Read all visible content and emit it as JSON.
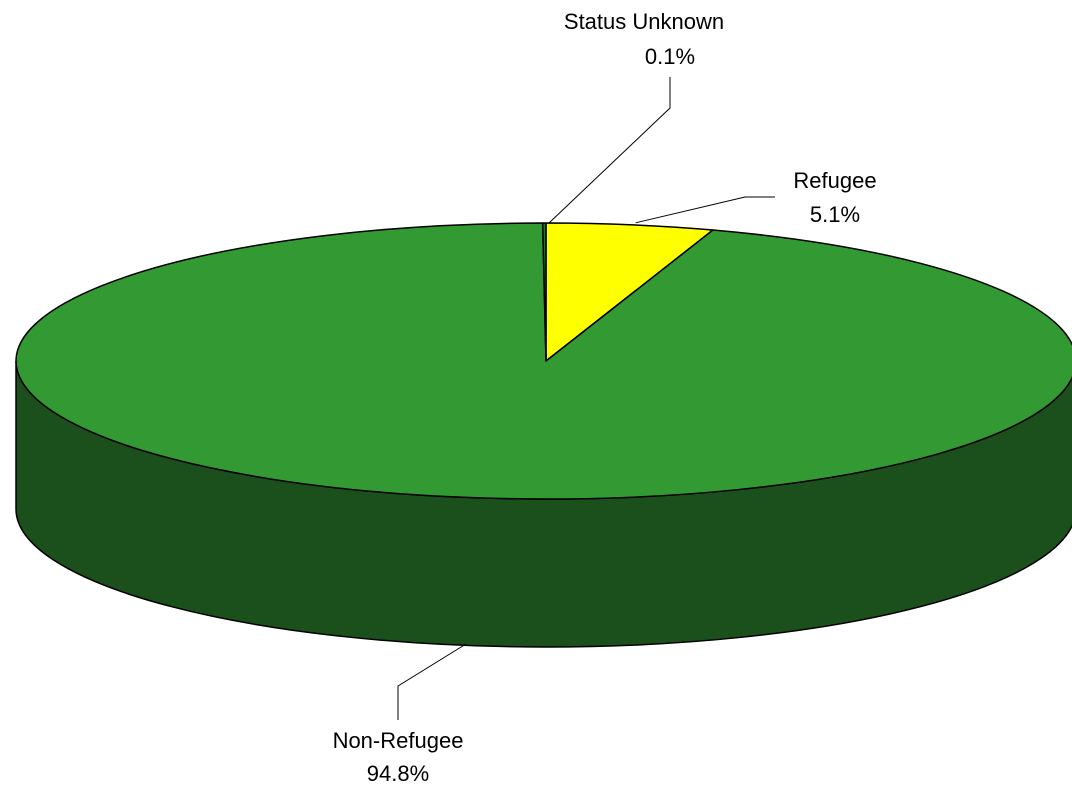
{
  "chart_data": {
    "type": "pie",
    "style": "3d",
    "title": "",
    "legend": "none",
    "slices": [
      {
        "label": "Refugee",
        "value": 5.1,
        "percent_label": "5.1%",
        "color": "#FFFF00"
      },
      {
        "label": "Non-Refugee",
        "value": 94.8,
        "percent_label": "94.8%",
        "color": "#339933"
      },
      {
        "label": "Status Unknown",
        "value": 0.1,
        "percent_label": "0.1%",
        "color": "#1E7A1E"
      }
    ],
    "side_color": "#1B4F1B",
    "outline_color": "#000000"
  }
}
